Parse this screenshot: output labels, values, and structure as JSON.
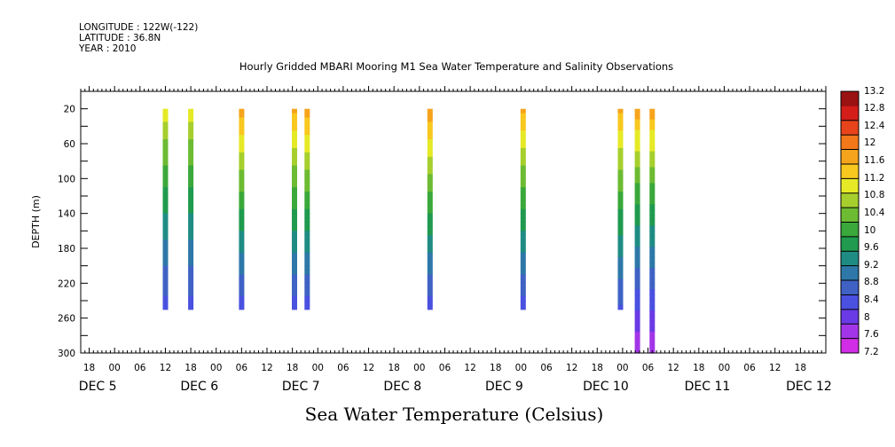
{
  "meta": {
    "longitude": "LONGITUDE : 122W(-122)",
    "latitude": "LATITUDE : 36.8N",
    "year": "YEAR : 2010"
  },
  "chart_data": {
    "type": "heatmap",
    "title": "Hourly Gridded MBARI Mooring M1 Sea Water Temperature and Salinity Observations",
    "xlabel": "Sea Water Temperature (Celsius)",
    "ylabel": "DEPTH (m)",
    "ylim": [
      300,
      0
    ],
    "yticks": [
      20,
      60,
      100,
      140,
      180,
      220,
      260,
      300
    ],
    "xlim_hours": [
      -8,
      168
    ],
    "x_hour_ticks": [
      "18",
      "00",
      "06",
      "12",
      "18",
      "00",
      "06",
      "12",
      "18",
      "00",
      "06",
      "12",
      "18",
      "00",
      "06",
      "12",
      "18",
      "00",
      "06",
      "12",
      "18",
      "00",
      "06",
      "12",
      "18",
      "00",
      "06",
      "12",
      "18"
    ],
    "x_day_labels": [
      "DEC  5",
      "DEC  6",
      "DEC  7",
      "DEC  8",
      "DEC  9",
      "DEC 10",
      "DEC 11",
      "DEC 12"
    ],
    "colorbar": {
      "levels": [
        7.2,
        7.6,
        8,
        8.4,
        8.8,
        9.2,
        9.6,
        10,
        10.4,
        10.8,
        11.2,
        11.6,
        12,
        12.4,
        12.8,
        13.2
      ],
      "colors": [
        "#d22de6",
        "#a335e8",
        "#6a3ae6",
        "#4a50e0",
        "#3f62c4",
        "#2d78a8",
        "#1f8c84",
        "#1f9a4e",
        "#3aa83a",
        "#6cbb32",
        "#a6cf2d",
        "#e6ea26",
        "#f8c81f",
        "#f6a41b",
        "#f2781a",
        "#e8441c",
        "#d41e1a",
        "#9a1212"
      ]
    },
    "profiles": [
      {
        "hour": 12.0,
        "depth_min": 20,
        "depth_max": 250,
        "temp_top": 11.5,
        "temp_bottom": 8.2
      },
      {
        "hour": 18.0,
        "depth_min": 20,
        "depth_max": 250,
        "temp_top": 11.5,
        "temp_bottom": 8.2
      },
      {
        "hour": 30.0,
        "depth_min": 20,
        "depth_max": 250,
        "temp_top": 12.3,
        "temp_bottom": 8.2
      },
      {
        "hour": 42.5,
        "depth_min": 20,
        "depth_max": 250,
        "temp_top": 12.2,
        "temp_bottom": 8.2
      },
      {
        "hour": 45.5,
        "depth_min": 20,
        "depth_max": 250,
        "temp_top": 12.3,
        "temp_bottom": 8.2
      },
      {
        "hour": 74.5,
        "depth_min": 20,
        "depth_max": 250,
        "temp_top": 12.4,
        "temp_bottom": 8.2
      },
      {
        "hour": 96.5,
        "depth_min": 20,
        "depth_max": 250,
        "temp_top": 12.2,
        "temp_bottom": 8.2
      },
      {
        "hour": 119.5,
        "depth_min": 20,
        "depth_max": 250,
        "temp_top": 12.2,
        "temp_bottom": 8.3
      },
      {
        "hour": 123.5,
        "depth_min": 20,
        "depth_max": 300,
        "temp_top": 12.3,
        "temp_bottom": 7.2
      },
      {
        "hour": 127.0,
        "depth_min": 20,
        "depth_max": 300,
        "temp_top": 12.3,
        "temp_bottom": 7.2
      }
    ]
  }
}
